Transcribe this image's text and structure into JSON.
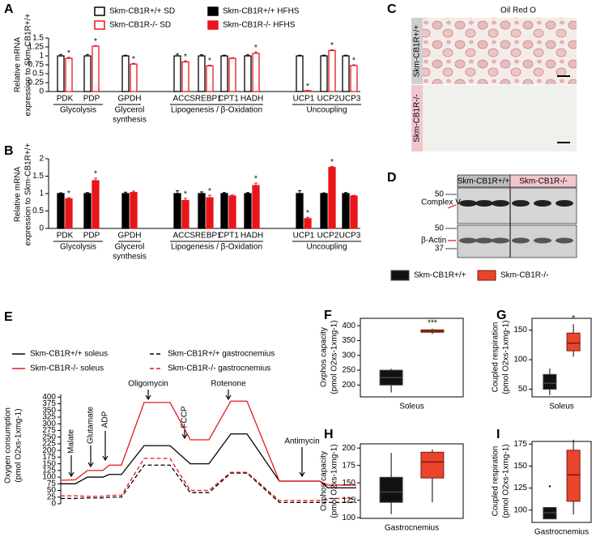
{
  "chart_data": [
    {
      "panel": "A",
      "type": "bar",
      "y_label": [
        "Relative mRNA",
        "expression to Skm-CB1R+/+"
      ],
      "categories": [
        "PDK",
        "PDP",
        "GPDH",
        "ACC",
        "SREBP1",
        "CPT1",
        "HADH",
        "UCP1",
        "UCP2",
        "UCP3"
      ],
      "groups": [
        {
          "label": [
            "Glycolysis"
          ]
        },
        {
          "label": [
            "Glycerol",
            "synthesis"
          ]
        },
        {
          "label": [
            "Lipogenesis / β-Oxidation"
          ]
        },
        {
          "label": [
            "Uncoupling"
          ]
        }
      ],
      "series": [
        {
          "name": "Skm-CB1R+/+ SD",
          "color": "#000000",
          "fill": "#ffffff",
          "values": [
            1,
            1,
            1,
            1,
            1,
            1,
            1,
            1,
            1,
            1
          ],
          "errors": [
            0.04,
            0.04,
            0.02,
            0.05,
            0.03,
            0.02,
            0.03,
            0.02,
            0.02,
            0.02
          ]
        },
        {
          "name": "Skm-CB1R-/- SD",
          "color": "#e8161b",
          "fill": "#ffffff",
          "values": [
            0.93,
            1.27,
            0.77,
            0.83,
            0.72,
            0.93,
            1.07,
            0.02,
            1.15,
            0.73
          ],
          "errors": [
            0.03,
            0.02,
            0.02,
            0.03,
            0.02,
            0.02,
            0.04,
            0.01,
            0.02,
            0.02
          ]
        }
      ],
      "significance": [
        "*",
        "*",
        "*",
        "*",
        "*",
        null,
        "*",
        "*",
        "*",
        "*"
      ],
      "ylim": [
        0,
        1.5
      ],
      "yticks": [
        0,
        0.25,
        0.5,
        0.75,
        1,
        1.25,
        1.5
      ]
    },
    {
      "panel": "B",
      "type": "bar",
      "y_label": [
        "Relative mRNA",
        "expression to Skm-CB1R+/+"
      ],
      "categories": [
        "PDK",
        "PDP",
        "GPDH",
        "ACC",
        "SREBP1",
        "CPT1",
        "HADH",
        "UCP1",
        "UCP2",
        "UCP3"
      ],
      "groups": [
        {
          "label": [
            "Glycolysis"
          ]
        },
        {
          "label": [
            "Glycerol",
            "synthesis"
          ]
        },
        {
          "label": [
            "Lipogenesis / β-Oxidation"
          ]
        },
        {
          "label": [
            "Uncoupling"
          ]
        }
      ],
      "series": [
        {
          "name": "Skm-CB1R+/+ HFHS",
          "color": "#000000",
          "fill": "#000000",
          "values": [
            1,
            1,
            1,
            1,
            1,
            1,
            1,
            1,
            1,
            1
          ],
          "errors": [
            0.02,
            0.03,
            0.04,
            0.08,
            0.05,
            0.03,
            0.03,
            0.08,
            0.02,
            0.03
          ]
        },
        {
          "name": "Skm-CB1R-/- HFHS",
          "color": "#e8161b",
          "fill": "#e8161b",
          "values": [
            0.85,
            1.37,
            1.03,
            0.8,
            0.88,
            0.93,
            1.23,
            0.28,
            1.75,
            0.93
          ],
          "errors": [
            0.03,
            0.07,
            0.04,
            0.06,
            0.07,
            0.03,
            0.07,
            0.04,
            0.03,
            0.02
          ]
        }
      ],
      "significance": [
        "*",
        "*",
        null,
        "*",
        "*",
        null,
        "*",
        "*",
        "*",
        null
      ],
      "ylim": [
        0,
        2
      ],
      "yticks": [
        0,
        0.5,
        1,
        1.5,
        2
      ]
    },
    {
      "panel": "E",
      "type": "line",
      "y_label": [
        "Oxygen consumption",
        "(pmol O2xs-1xmg-1)"
      ],
      "x": [
        0,
        18,
        33,
        52,
        60,
        75,
        103,
        135,
        160,
        183,
        210,
        230,
        270,
        320,
        330,
        365
      ],
      "xlim": [
        0,
        365
      ],
      "series": [
        {
          "name": "Skm-CB1R+/+ soleus",
          "color": "#000000",
          "dashed": false,
          "values": [
            75,
            75,
            100,
            100,
            110,
            110,
            218,
            218,
            150,
            150,
            262,
            262,
            85,
            85,
            60,
            60
          ]
        },
        {
          "name": "Skm-CB1R-/- soleus",
          "color": "#e8161b",
          "dashed": false,
          "values": [
            88,
            90,
            125,
            125,
            145,
            145,
            380,
            380,
            240,
            240,
            385,
            385,
            85,
            85,
            70,
            70
          ]
        },
        {
          "name": "Skm-CB1R+/+ gastrocnemius",
          "color": "#000000",
          "dashed": true,
          "values": [
            20,
            20,
            22,
            22,
            25,
            25,
            145,
            145,
            42,
            42,
            115,
            115,
            5,
            5,
            5,
            5
          ]
        },
        {
          "name": "Skm-CB1R-/- gastrocnemius",
          "color": "#e8161b",
          "dashed": true,
          "values": [
            30,
            30,
            28,
            28,
            32,
            32,
            170,
            170,
            50,
            50,
            118,
            118,
            12,
            12,
            20,
            20
          ]
        }
      ],
      "injections": [
        {
          "label": "Malate",
          "x": 13
        },
        {
          "label": "Glutamate",
          "x": 37
        },
        {
          "label": "ADP",
          "x": 55
        },
        {
          "label": "Oligomycin",
          "x": 108
        },
        {
          "label": "FCCP",
          "x": 153
        },
        {
          "label": "Rotenone",
          "x": 207
        },
        {
          "label": "Antimycin",
          "x": 298
        }
      ],
      "ylim": [
        0,
        410
      ],
      "yticks": [
        0,
        25,
        50,
        75,
        100,
        125,
        150,
        175,
        200,
        225,
        250,
        275,
        300,
        325,
        350,
        375,
        400
      ]
    },
    {
      "panel": "F",
      "type": "box",
      "y_label": [
        "Oxphos capacity",
        "(pmol O2xs-1xmg-1)"
      ],
      "x_label": "Soleus",
      "series": [
        {
          "name": "Skm-CB1R+/+",
          "color": "#111111",
          "edge": "#444444",
          "box": {
            "min": 175,
            "q1": 200,
            "median": 225,
            "q3": 250,
            "max": 255
          }
        },
        {
          "name": "Skm-CB1R-/-",
          "color": "#e8452c",
          "edge": "#7a1a0a",
          "box": {
            "min": 372,
            "q1": 378,
            "median": 382,
            "q3": 386,
            "max": 390
          }
        }
      ],
      "significance": "***",
      "ylim": [
        160,
        425
      ],
      "yticks": [
        200,
        250,
        300,
        350,
        400
      ]
    },
    {
      "panel": "G",
      "type": "box",
      "y_label": [
        "Coupled respiration",
        "(pmol O2xs-1xmg-1)"
      ],
      "x_label": "Soleus",
      "series": [
        {
          "name": "Skm-CB1R+/+",
          "color": "#111111",
          "edge": "#444444",
          "box": {
            "min": 40,
            "q1": 50,
            "median": 60,
            "q3": 75,
            "max": 85
          }
        },
        {
          "name": "Skm-CB1R-/-",
          "color": "#e8452c",
          "edge": "#7a1a0a",
          "box": {
            "min": 105,
            "q1": 115,
            "median": 128,
            "q3": 145,
            "max": 160
          }
        }
      ],
      "significance": "*",
      "ylim": [
        37,
        170
      ],
      "yticks": [
        50,
        100,
        150
      ]
    },
    {
      "panel": "H",
      "type": "box",
      "y_label": [
        "Oxphos capacity",
        "(pmol O2xs-1xmg-1)"
      ],
      "x_label": "Gastrocnemius",
      "series": [
        {
          "name": "Skm-CB1R+/+",
          "color": "#111111",
          "edge": "#444444",
          "box": {
            "min": 105,
            "q1": 122,
            "median": 137,
            "q3": 158,
            "max": 193
          }
        },
        {
          "name": "Skm-CB1R-/-",
          "color": "#e8452c",
          "edge": "#7a1a0a",
          "box": {
            "min": 122,
            "q1": 157,
            "median": 180,
            "q3": 194,
            "max": 198
          }
        }
      ],
      "ylim": [
        99,
        206
      ],
      "yticks": [
        100,
        125,
        150,
        175,
        200
      ]
    },
    {
      "panel": "I",
      "type": "box",
      "y_label": [
        "Coupled respiration",
        "(pmol O2xs-1xmg-1)"
      ],
      "x_label": "Gastrocnemius",
      "series": [
        {
          "name": "Skm-CB1R+/+",
          "color": "#111111",
          "edge": "#444444",
          "box": {
            "min": 90,
            "q1": 90,
            "median": 97,
            "q3": 103,
            "max": 103
          },
          "outliers": [
            127
          ]
        },
        {
          "name": "Skm-CB1R-/-",
          "color": "#e8452c",
          "edge": "#7a1a0a",
          "box": {
            "min": 95,
            "q1": 110,
            "median": 140,
            "q3": 168,
            "max": 180
          }
        }
      ],
      "ylim": [
        86,
        178
      ],
      "yticks": [
        100,
        125,
        150,
        175
      ]
    }
  ],
  "images": [
    {
      "panel": "C",
      "title": "Oil Red O",
      "labels": [
        "Skm-CB1R+/+",
        "Skm-CB1R-/-"
      ]
    },
    {
      "panel": "D",
      "headers": [
        "Skm-CB1R+/+",
        "Skm-CB1R-/-"
      ],
      "bands": [
        "Complex V",
        "β-Actin"
      ],
      "markers": [
        50,
        50,
        37
      ]
    }
  ]
}
